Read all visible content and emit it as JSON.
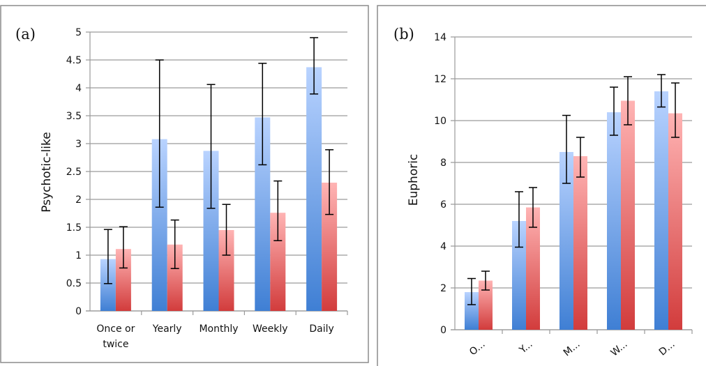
{
  "colors": {
    "blue_light": "#b9d3ff",
    "blue_dark": "#3f7fd4",
    "red_light": "#ffb4b4",
    "red_dark": "#d23c3c",
    "grid": "#9a9a9a",
    "frame": "#8c8c8c"
  },
  "chart_data": [
    {
      "type": "bar",
      "panel_label": "(a)",
      "ylabel": "Psychotic-like",
      "xlabel": "",
      "title": "",
      "categories": [
        "Once or\ntwice",
        "Yearly",
        "Monthly",
        "Weekly",
        "Daily"
      ],
      "ylim": [
        0,
        5
      ],
      "yticks": [
        "0",
        "0.5",
        "1",
        "1.5",
        "2",
        "2.5",
        "3",
        "3.5",
        "4",
        "4.5",
        "5"
      ],
      "grid": true,
      "series": [
        {
          "color": "blue",
          "values": [
            0.93,
            3.08,
            2.87,
            3.47,
            4.37
          ],
          "err_low": [
            0.49,
            1.86,
            1.84,
            2.62,
            3.89
          ],
          "err_high": [
            1.46,
            4.5,
            4.06,
            4.44,
            4.9
          ]
        },
        {
          "color": "red",
          "values": [
            1.11,
            1.19,
            1.45,
            1.76,
            2.3
          ],
          "err_low": [
            0.77,
            0.76,
            1.0,
            1.26,
            1.73
          ],
          "err_high": [
            1.51,
            1.63,
            1.91,
            2.33,
            2.89
          ]
        }
      ]
    },
    {
      "type": "bar",
      "panel_label": "(b)",
      "ylabel": "Euphoric",
      "xlabel": "",
      "title": "",
      "categories": [
        "O...",
        "Y...",
        "M...",
        "W...",
        "D..."
      ],
      "ylim": [
        0,
        14
      ],
      "yticks": [
        "0",
        "2",
        "4",
        "6",
        "8",
        "10",
        "12",
        "14"
      ],
      "grid": true,
      "series": [
        {
          "color": "blue",
          "values": [
            1.8,
            5.2,
            8.5,
            10.4,
            11.4
          ],
          "err_low": [
            1.2,
            3.95,
            7.0,
            9.3,
            10.65
          ],
          "err_high": [
            2.45,
            6.6,
            10.25,
            11.6,
            12.2
          ]
        },
        {
          "color": "red",
          "values": [
            2.35,
            5.85,
            8.3,
            10.95,
            10.35
          ],
          "err_low": [
            1.9,
            4.9,
            7.3,
            9.8,
            9.2
          ],
          "err_high": [
            2.8,
            6.8,
            9.2,
            12.1,
            11.8
          ]
        }
      ]
    }
  ]
}
